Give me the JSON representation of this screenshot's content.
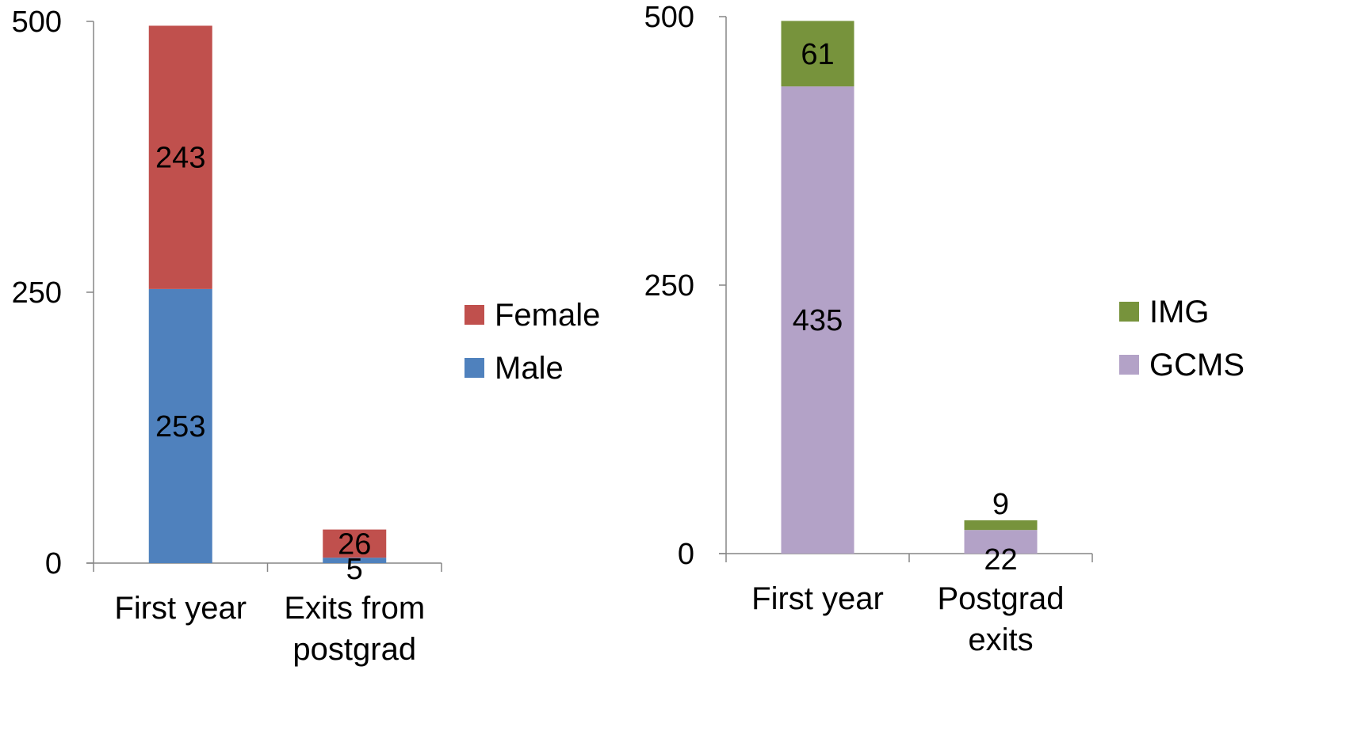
{
  "chart_data": [
    {
      "type": "bar",
      "stacked": true,
      "categories": [
        [
          "First year"
        ],
        [
          "Exits from",
          "postgrad"
        ]
      ],
      "series": [
        {
          "name": "Male",
          "color": "#4f81bd",
          "values": [
            253,
            5
          ]
        },
        {
          "name": "Female",
          "color": "#c0504d",
          "values": [
            243,
            26
          ]
        }
      ],
      "ylim": [
        0,
        500
      ],
      "yticks": [
        0,
        250,
        500
      ],
      "legend": [
        "Female",
        "Male"
      ],
      "legend_position": "right",
      "grid": false
    },
    {
      "type": "bar",
      "stacked": true,
      "categories": [
        [
          "First year"
        ],
        [
          "Postgrad",
          "exits"
        ]
      ],
      "series": [
        {
          "name": "GCMS",
          "color": "#b3a2c7",
          "values": [
            435,
            22
          ]
        },
        {
          "name": "IMG",
          "color": "#77933c",
          "values": [
            61,
            9
          ]
        }
      ],
      "ylim": [
        0,
        500
      ],
      "yticks": [
        0,
        250,
        500
      ],
      "legend": [
        "IMG",
        "GCMS"
      ],
      "legend_position": "right",
      "grid": false
    }
  ]
}
